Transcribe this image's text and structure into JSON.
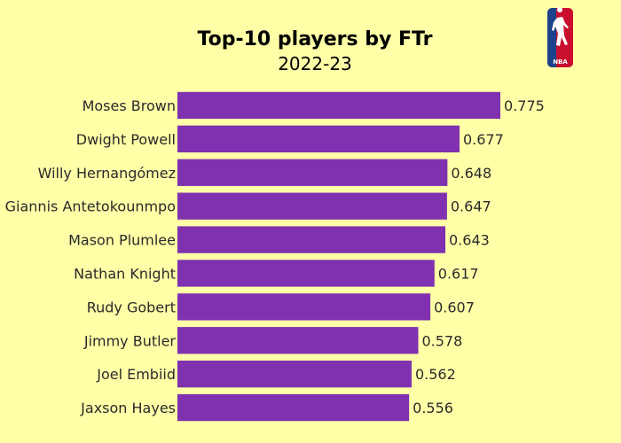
{
  "chart_data": {
    "type": "bar",
    "orientation": "horizontal",
    "title": "Top-10 players by FTr",
    "subtitle": "2022-23",
    "categories": [
      "Moses Brown",
      "Dwight Powell",
      "Willy Hernangómez",
      "Giannis Antetokounmpo",
      "Mason Plumlee",
      "Nathan Knight",
      "Rudy Gobert",
      "Jimmy Butler",
      "Joel Embiid",
      "Jaxson Hayes"
    ],
    "values": [
      0.775,
      0.677,
      0.648,
      0.647,
      0.643,
      0.617,
      0.607,
      0.578,
      0.562,
      0.556
    ],
    "data_labels": [
      "0.775",
      "0.677",
      "0.648",
      "0.647",
      "0.643",
      "0.617",
      "0.607",
      "0.578",
      "0.562",
      "0.556"
    ],
    "xlim": [
      0,
      0.775
    ],
    "xlabel": "",
    "ylabel": "",
    "grid": false,
    "legend": "none",
    "bar_color": "#8031b0",
    "background_color": "#ffffa8"
  },
  "logo": {
    "text": "NBA",
    "icon": "nba-logo-icon",
    "colors": {
      "left": "#1d428a",
      "right": "#c8102e"
    }
  }
}
